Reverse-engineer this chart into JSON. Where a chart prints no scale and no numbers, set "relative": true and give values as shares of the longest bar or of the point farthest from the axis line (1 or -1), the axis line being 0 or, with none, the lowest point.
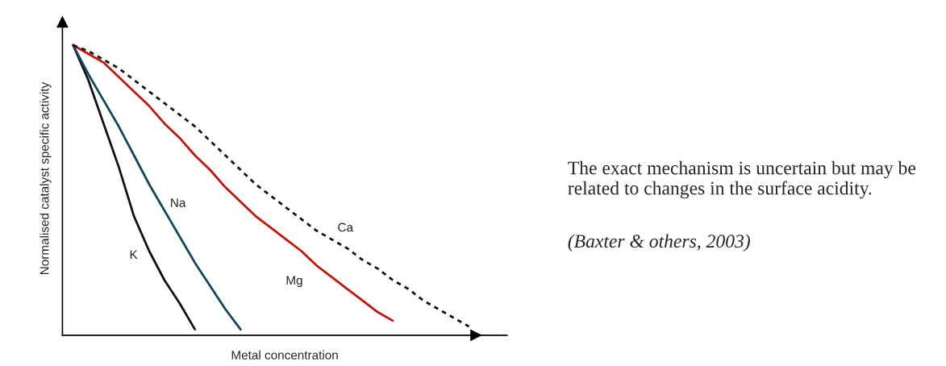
{
  "chart_data": {
    "type": "line",
    "relative": true,
    "xlabel": "Metal concentration",
    "ylabel": "Normalised catalyst specific activity",
    "categories": [
      null,
      null,
      null,
      null,
      null,
      null,
      null,
      null,
      null,
      null,
      null,
      null,
      null,
      null,
      null,
      null,
      null,
      null,
      null,
      null,
      null,
      null,
      null,
      null,
      null,
      null,
      null
    ],
    "marker": "none",
    "series": [
      {
        "name": "K",
        "color": "#111111",
        "line_style": "solid",
        "values": [
          1.0,
          0.88,
          0.73,
          0.58,
          0.41,
          0.29,
          0.19,
          0.11,
          0.02,
          null,
          null,
          null,
          null,
          null,
          null,
          null,
          null,
          null,
          null,
          null,
          null,
          null,
          null,
          null,
          null,
          null,
          null
        ]
      },
      {
        "name": "Na",
        "color": "#0f4a5c",
        "line_style": "solid",
        "values": [
          1.0,
          0.9,
          0.81,
          0.72,
          0.62,
          0.52,
          0.43,
          0.34,
          0.25,
          0.17,
          0.09,
          0.02,
          null,
          null,
          null,
          null,
          null,
          null,
          null,
          null,
          null,
          null,
          null,
          null,
          null,
          null,
          null
        ]
      },
      {
        "name": "Mg",
        "color": "#c0150a",
        "line_style": "solid",
        "values": [
          1.0,
          0.97,
          0.94,
          0.89,
          0.84,
          0.79,
          0.73,
          0.68,
          0.62,
          0.57,
          0.51,
          0.46,
          0.41,
          0.37,
          0.33,
          0.29,
          0.24,
          0.2,
          0.16,
          0.12,
          0.08,
          0.05,
          null,
          null,
          null,
          null,
          null
        ]
      },
      {
        "name": "Ca",
        "color": "#111111",
        "line_style": "dotted",
        "values": [
          1.0,
          0.98,
          0.95,
          0.92,
          0.88,
          0.84,
          0.8,
          0.76,
          0.72,
          0.67,
          0.62,
          0.57,
          0.52,
          0.48,
          0.44,
          0.4,
          0.36,
          0.33,
          0.3,
          0.26,
          0.23,
          0.19,
          0.16,
          0.12,
          0.09,
          0.06,
          0.03
        ]
      }
    ],
    "annotations": [
      "The exact mechanism is uncertain but may be related to changes in the surface acidity.",
      "(Baxter & others, 2003)"
    ]
  }
}
